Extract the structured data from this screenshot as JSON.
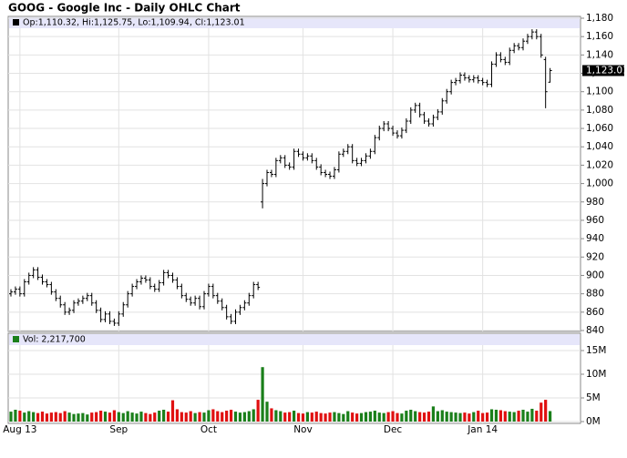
{
  "chart_data": [
    {
      "type": "ohlc",
      "title": "GOOG - Google Inc - Daily OHLC Chart",
      "legend_text": "Op:1,110.32, Hi:1,125.75, Lo:1,109.94, Cl:1,123.01",
      "categories": [
        null,
        null,
        "Aug 13",
        null,
        null,
        null,
        null,
        null,
        null,
        null,
        null,
        null,
        null,
        null,
        null,
        null,
        null,
        null,
        null,
        null,
        null,
        null,
        null,
        null,
        "Sep",
        null,
        null,
        null,
        null,
        null,
        null,
        null,
        null,
        null,
        null,
        null,
        null,
        null,
        null,
        null,
        null,
        null,
        null,
        null,
        "Oct",
        null,
        null,
        null,
        null,
        null,
        null,
        null,
        null,
        null,
        null,
        null,
        null,
        null,
        null,
        null,
        null,
        null,
        null,
        null,
        null,
        "Nov",
        null,
        null,
        null,
        null,
        null,
        null,
        null,
        null,
        null,
        null,
        null,
        null,
        null,
        null,
        null,
        null,
        null,
        null,
        null,
        "Dec",
        null,
        null,
        null,
        null,
        null,
        null,
        null,
        null,
        null,
        null,
        null,
        null,
        null,
        null,
        null,
        null,
        null,
        null,
        null,
        "Jan 14",
        null,
        null,
        null,
        null,
        null,
        null,
        null,
        null,
        null,
        null,
        null,
        null,
        null,
        null,
        null
      ],
      "open": [
        880,
        882,
        885,
        880,
        893,
        900,
        906,
        898,
        893,
        890,
        882,
        875,
        868,
        860,
        862,
        870,
        872,
        875,
        878,
        870,
        862,
        852,
        858,
        850,
        848,
        858,
        868,
        880,
        888,
        893,
        897,
        895,
        888,
        885,
        892,
        903,
        900,
        895,
        888,
        878,
        874,
        870,
        875,
        866,
        880,
        888,
        878,
        872,
        865,
        855,
        850,
        860,
        865,
        870,
        878,
        890,
        980,
        1000,
        1012,
        1010,
        1025,
        1028,
        1020,
        1018,
        1035,
        1032,
        1028,
        1030,
        1025,
        1018,
        1012,
        1010,
        1008,
        1015,
        1032,
        1035,
        1040,
        1025,
        1022,
        1025,
        1030,
        1035,
        1050,
        1060,
        1065,
        1060,
        1055,
        1052,
        1058,
        1068,
        1080,
        1085,
        1075,
        1068,
        1065,
        1072,
        1078,
        1090,
        1100,
        1110,
        1112,
        1118,
        1115,
        1113,
        1115,
        1112,
        1110,
        1108,
        1130,
        1140,
        1135,
        1132,
        1145,
        1150,
        1148,
        1155,
        1160,
        1165,
        1160,
        1135,
        1110.32
      ],
      "high": [
        885,
        888,
        888,
        896,
        903,
        909,
        909,
        901,
        896,
        893,
        885,
        878,
        871,
        865,
        873,
        875,
        878,
        881,
        881,
        873,
        865,
        861,
        861,
        853,
        861,
        871,
        883,
        891,
        896,
        900,
        900,
        898,
        891,
        895,
        906,
        906,
        903,
        898,
        891,
        881,
        877,
        878,
        878,
        883,
        891,
        891,
        881,
        875,
        868,
        858,
        863,
        868,
        873,
        881,
        893,
        893,
        1005,
        1015,
        1015,
        1028,
        1031,
        1031,
        1023,
        1038,
        1038,
        1035,
        1033,
        1033,
        1028,
        1021,
        1015,
        1013,
        1018,
        1035,
        1038,
        1043,
        1043,
        1028,
        1028,
        1033,
        1038,
        1053,
        1063,
        1068,
        1068,
        1063,
        1058,
        1061,
        1071,
        1083,
        1088,
        1088,
        1078,
        1071,
        1075,
        1081,
        1093,
        1103,
        1113,
        1115,
        1121,
        1121,
        1118,
        1118,
        1118,
        1115,
        1113,
        1133,
        1143,
        1143,
        1138,
        1148,
        1153,
        1153,
        1158,
        1163,
        1168,
        1168,
        1163,
        1138,
        1125.75
      ],
      "low": [
        877,
        879,
        877,
        877,
        890,
        897,
        895,
        890,
        887,
        879,
        872,
        865,
        857,
        857,
        859,
        867,
        869,
        872,
        867,
        859,
        849,
        849,
        847,
        845,
        845,
        855,
        865,
        877,
        885,
        890,
        892,
        885,
        882,
        882,
        889,
        897,
        892,
        885,
        875,
        871,
        867,
        867,
        863,
        863,
        877,
        875,
        869,
        862,
        852,
        847,
        847,
        857,
        862,
        867,
        875,
        884,
        973,
        997,
        1007,
        1007,
        1022,
        1017,
        1015,
        1015,
        1029,
        1025,
        1025,
        1022,
        1015,
        1009,
        1007,
        1005,
        1005,
        1012,
        1029,
        1032,
        1022,
        1019,
        1019,
        1022,
        1027,
        1032,
        1047,
        1057,
        1057,
        1052,
        1049,
        1049,
        1055,
        1065,
        1077,
        1072,
        1065,
        1062,
        1062,
        1069,
        1075,
        1087,
        1097,
        1107,
        1109,
        1112,
        1110,
        1110,
        1109,
        1107,
        1105,
        1105,
        1127,
        1132,
        1129,
        1129,
        1142,
        1145,
        1145,
        1152,
        1157,
        1157,
        1137,
        1082,
        1109.94
      ],
      "close": [
        882,
        885,
        880,
        893,
        900,
        906,
        898,
        893,
        890,
        882,
        875,
        868,
        860,
        862,
        870,
        872,
        875,
        878,
        870,
        862,
        852,
        858,
        850,
        848,
        858,
        868,
        880,
        888,
        893,
        897,
        895,
        888,
        885,
        892,
        903,
        900,
        895,
        888,
        878,
        874,
        870,
        875,
        866,
        880,
        888,
        878,
        872,
        865,
        855,
        850,
        860,
        865,
        870,
        878,
        890,
        887,
        1000,
        1012,
        1010,
        1025,
        1028,
        1020,
        1018,
        1035,
        1032,
        1028,
        1030,
        1025,
        1018,
        1012,
        1010,
        1008,
        1015,
        1032,
        1035,
        1040,
        1025,
        1022,
        1025,
        1030,
        1035,
        1050,
        1060,
        1065,
        1060,
        1055,
        1052,
        1058,
        1068,
        1080,
        1085,
        1075,
        1068,
        1065,
        1072,
        1078,
        1090,
        1100,
        1110,
        1112,
        1118,
        1115,
        1113,
        1115,
        1112,
        1110,
        1108,
        1130,
        1140,
        1135,
        1132,
        1145,
        1150,
        1148,
        1155,
        1160,
        1165,
        1160,
        1140,
        1100,
        1123.01
      ],
      "color": "#000000",
      "ylim": [
        840,
        1180
      ],
      "yticks": [
        840,
        860,
        880,
        900,
        920,
        940,
        960,
        980,
        {
          "value": 1000,
          "label": "1,000"
        },
        {
          "value": 1020,
          "label": "1,020"
        },
        {
          "value": 1040,
          "label": "1,040"
        },
        {
          "value": 1060,
          "label": "1,060"
        },
        {
          "value": 1080,
          "label": "1,080"
        },
        {
          "value": 1100,
          "label": "1,100"
        },
        {
          "value": 1120,
          "label": "1,120"
        },
        {
          "value": 1140,
          "label": "1,140"
        },
        {
          "value": 1160,
          "label": "1,160"
        },
        {
          "value": 1180,
          "label": "1,180"
        }
      ],
      "last_label": {
        "value": 1123.01,
        "label": "1,123.01"
      },
      "grid": true
    },
    {
      "type": "bar",
      "legend_text": "Vol: 2,217,700",
      "values": [
        2100000,
        2500000,
        2300000,
        1900000,
        2200000,
        2000000,
        1800000,
        2100000,
        1700000,
        1900000,
        2000000,
        1800000,
        2200000,
        1900000,
        1600000,
        1700000,
        1800000,
        1500000,
        1900000,
        2000000,
        2300000,
        2100000,
        1900000,
        2400000,
        2000000,
        1800000,
        2200000,
        1900000,
        1700000,
        2100000,
        1800000,
        1600000,
        1900000,
        2300000,
        2500000,
        2100000,
        4500000,
        2600000,
        2000000,
        1900000,
        2200000,
        1800000,
        2000000,
        1900000,
        2400000,
        2600000,
        2200000,
        2000000,
        2300000,
        2500000,
        2100000,
        1900000,
        2000000,
        2200000,
        2600000,
        4600000,
        11500000,
        4200000,
        2800000,
        2400000,
        2200000,
        1900000,
        2000000,
        2300000,
        1800000,
        1700000,
        2000000,
        1900000,
        2100000,
        1800000,
        1700000,
        1900000,
        2000000,
        1800000,
        1600000,
        2200000,
        1900000,
        1700000,
        1800000,
        2000000,
        2100000,
        2300000,
        1900000,
        1800000,
        2000000,
        2200000,
        1800000,
        1700000,
        2300000,
        2500000,
        2200000,
        2000000,
        1900000,
        2100000,
        3200000,
        2200000,
        2400000,
        2100000,
        2000000,
        1900000,
        1800000,
        1900000,
        1700000,
        2000000,
        2300000,
        1800000,
        1900000,
        2600000,
        2500000,
        2400000,
        2200000,
        2100000,
        2000000,
        2300000,
        2500000,
        2100000,
        2700000,
        2300000,
        4000000,
        4600000,
        2217700
      ],
      "up_color": "#1a7f1a",
      "down_color": "#e01010",
      "ylim": [
        0,
        18000000
      ],
      "yticks": [
        {
          "value": 0,
          "label": "0M"
        },
        {
          "value": 5000000,
          "label": "5M"
        },
        {
          "value": 10000000,
          "label": "10M"
        },
        {
          "value": 15000000,
          "label": "15M"
        }
      ],
      "grid": true
    }
  ]
}
